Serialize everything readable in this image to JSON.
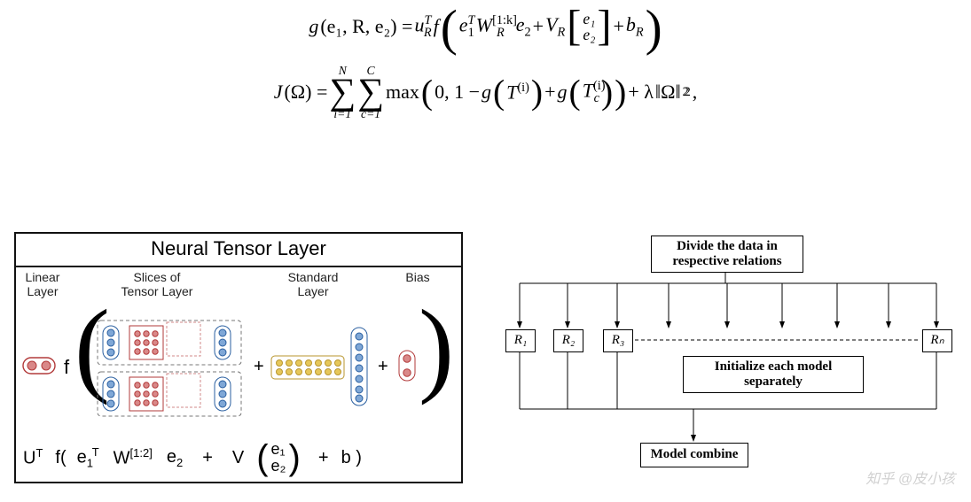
{
  "eq1": {
    "lhs_g": "g",
    "lhs_args": "(e₁, R, e₂) = ",
    "uR": "u",
    "uR_sub": "R",
    "uR_sup": "T",
    "f": "f",
    "e1T": "e",
    "e1T_sub": "1",
    "e1T_sup": "T",
    "W": "W",
    "W_sub": "R",
    "W_sup": "[1:k]",
    "e2": "e",
    "e2_sub": "2",
    "plus1": " + ",
    "V": "V",
    "V_sub": "R",
    "vec_top": "e₁",
    "vec_bot": "e₂",
    "plus2": " + ",
    "b": "b",
    "b_sub": "R"
  },
  "eq2": {
    "J": "J",
    "Omega": "(Ω) = ",
    "sum1_top": "N",
    "sum1_bot": "i=1",
    "sum2_top": "C",
    "sum2_bot": "c=1",
    "max": " max",
    "zero_one": "0, 1 − ",
    "g1": "g",
    "T1": "T",
    "T1_sup": "(i)",
    "plus": " + ",
    "g2": "g",
    "T2": "T",
    "T2_sub": "c",
    "T2_sup": "(i)",
    "plus_lambda": " + λ",
    "Omega2": "‖Ω‖",
    "norm_sup": "2",
    "norm_sub": "2",
    "comma": ","
  },
  "ntl": {
    "title": "Neural Tensor Layer",
    "headers": {
      "linear": "Linear\nLayer",
      "slices": "Slices of\nTensor Layer",
      "standard": "Standard\nLayer",
      "bias": "Bias"
    },
    "expr": {
      "U": "U",
      "U_sup": "T",
      "f": "f(",
      "e1": "e",
      "e1_sub": "1",
      "e1_sup": "T",
      "W": "W",
      "W_sup": "[1:2]",
      "e2": "e",
      "e2_sub": "2",
      "plus1": "+",
      "V": "V",
      "vec_top": "e₁",
      "vec_bot": "e₂",
      "plus2": "+",
      "b": "b )"
    },
    "colors": {
      "red": "#b23a3a",
      "red_fill": "#d98888",
      "blue": "#2a5fa0",
      "blue_fill": "#7fa7d6",
      "gold_fill": "#e6c75a",
      "gold": "#b8962e",
      "box_stroke": "#444",
      "dash": "#777"
    }
  },
  "flow": {
    "boxes": {
      "divide": "Divide the data in\nrespective relations",
      "init": "Initialize each model\nseparately",
      "combine": "Model combine",
      "R1": "R₁",
      "R2": "R₂",
      "R3": "R₃",
      "Rn": "Rₙ"
    },
    "style": {
      "stroke": "#000000",
      "arrow_fill": "#000000",
      "dash_pattern": "4 3",
      "font_size": 15
    }
  },
  "watermark": "知乎 @皮小孩"
}
